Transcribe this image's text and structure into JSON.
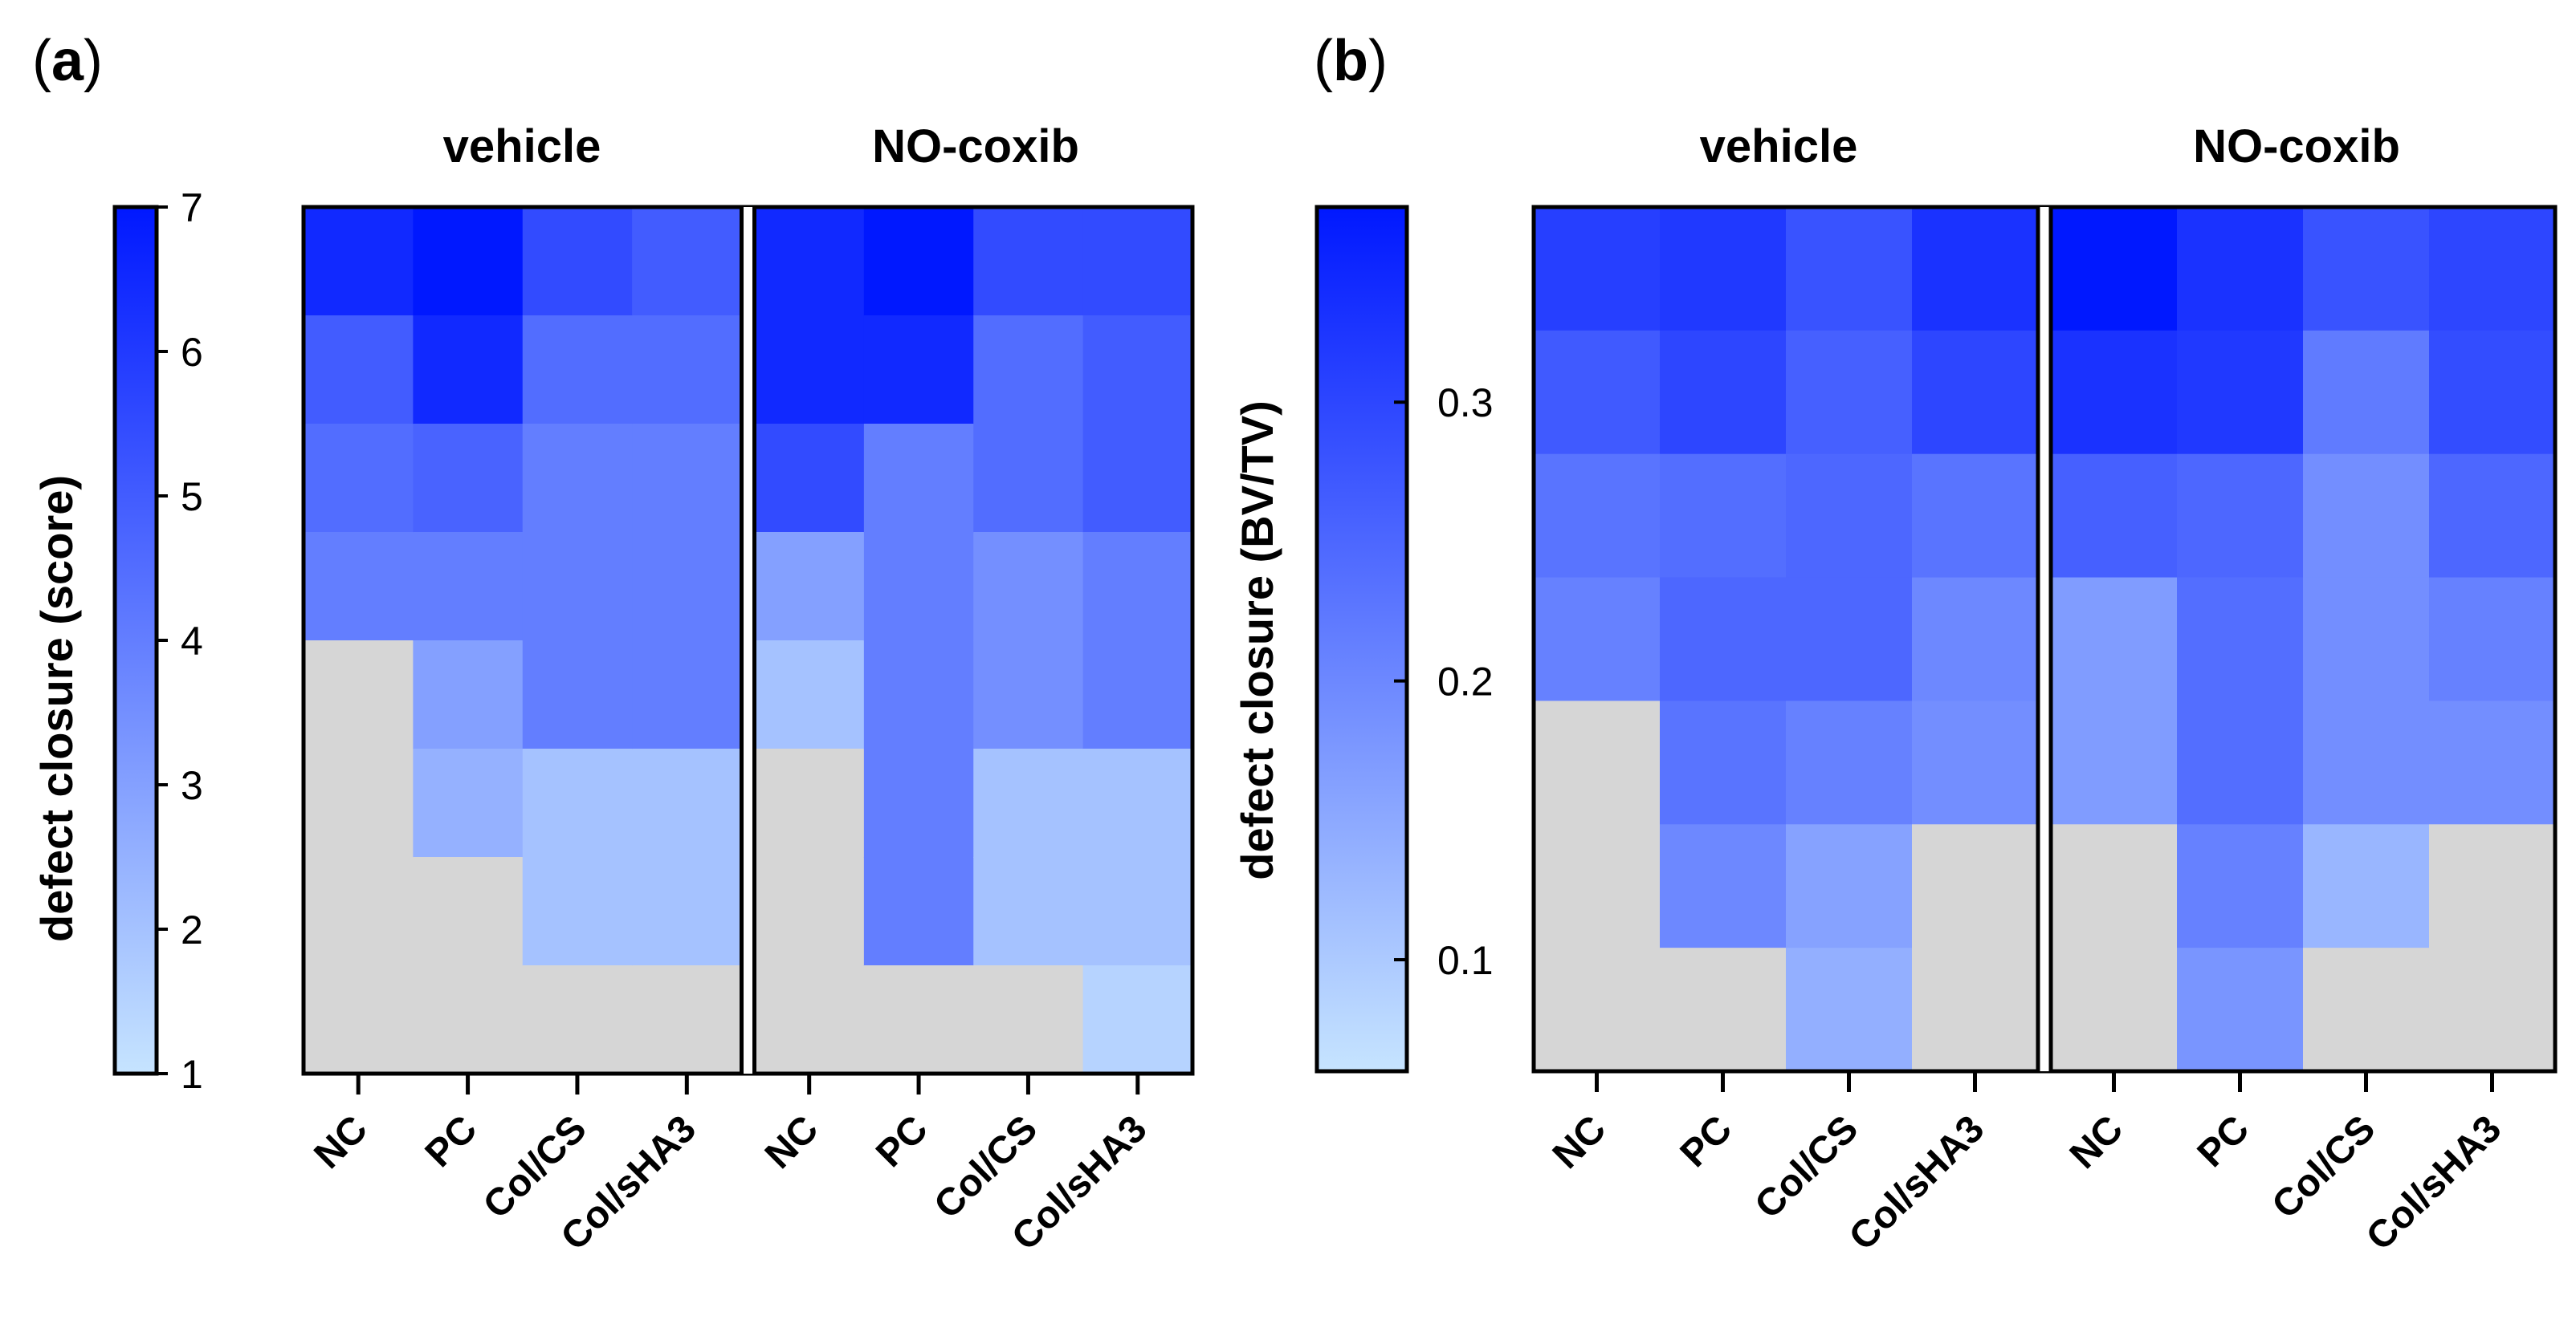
{
  "chart_data": [
    {
      "type": "heatmap",
      "panel": "(a)",
      "panel_letter": "a",
      "groups": [
        "vehicle",
        "NO-coxib"
      ],
      "categories": [
        "NC",
        "PC",
        "Col/CS",
        "Col/sHA3"
      ],
      "colorbar": {
        "label": "defect closure (score)",
        "min": 1,
        "max": 7,
        "ticks": [
          "1",
          "2",
          "3",
          "4",
          "5",
          "6",
          "7"
        ]
      },
      "missing_color": "#d6d6d6",
      "rows": 8,
      "columns": [
        {
          "group": "vehicle",
          "category": "NC",
          "values": [
            6.5,
            5.0,
            4.5,
            4.0,
            null,
            null,
            null,
            null
          ]
        },
        {
          "group": "vehicle",
          "category": "PC",
          "values": [
            7.0,
            6.5,
            4.8,
            4.0,
            3.0,
            2.5,
            null,
            null
          ]
        },
        {
          "group": "vehicle",
          "category": "Col/CS",
          "values": [
            5.5,
            4.5,
            4.0,
            4.0,
            4.0,
            2.0,
            2.0,
            null
          ]
        },
        {
          "group": "vehicle",
          "category": "Col/sHA3",
          "values": [
            5.0,
            4.5,
            4.0,
            4.0,
            4.0,
            2.0,
            2.0,
            null
          ]
        },
        {
          "group": "NO-coxib",
          "category": "NC",
          "values": [
            6.5,
            6.5,
            5.5,
            3.0,
            2.0,
            null,
            null,
            null
          ]
        },
        {
          "group": "NO-coxib",
          "category": "PC",
          "values": [
            7.0,
            6.5,
            4.0,
            4.0,
            4.0,
            4.0,
            4.0,
            null
          ]
        },
        {
          "group": "NO-coxib",
          "category": "Col/CS",
          "values": [
            5.5,
            4.5,
            4.5,
            3.5,
            3.5,
            2.0,
            2.0,
            null
          ]
        },
        {
          "group": "NO-coxib",
          "category": "Col/sHA3",
          "values": [
            5.5,
            5.0,
            5.0,
            4.0,
            4.0,
            2.0,
            2.0,
            1.5
          ]
        }
      ]
    },
    {
      "type": "heatmap",
      "panel": "(b)",
      "panel_letter": "b",
      "groups": [
        "vehicle",
        "NO-coxib"
      ],
      "categories": [
        "NC",
        "PC",
        "Col/CS",
        "Col/sHA3"
      ],
      "colorbar": {
        "label": "defect closure (BV/TV)",
        "min": 0.06,
        "max": 0.37,
        "ticks": [
          "0.1",
          "0.2",
          "0.3"
        ]
      },
      "missing_color": "#d6d6d6",
      "rows": 7,
      "columns": [
        {
          "group": "vehicle",
          "category": "NC",
          "values": [
            0.31,
            0.27,
            0.23,
            0.21,
            null,
            null,
            null
          ]
        },
        {
          "group": "vehicle",
          "category": "PC",
          "values": [
            0.32,
            0.3,
            0.24,
            0.25,
            0.23,
            0.2,
            null
          ]
        },
        {
          "group": "vehicle",
          "category": "Col/CS",
          "values": [
            0.28,
            0.26,
            0.25,
            0.25,
            0.21,
            0.16,
            0.14
          ]
        },
        {
          "group": "vehicle",
          "category": "Col/sHA3",
          "values": [
            0.33,
            0.3,
            0.23,
            0.2,
            0.19,
            null,
            null
          ]
        },
        {
          "group": "NO-coxib",
          "category": "NC",
          "values": [
            0.37,
            0.33,
            0.26,
            0.17,
            0.17,
            null,
            null
          ]
        },
        {
          "group": "NO-coxib",
          "category": "PC",
          "values": [
            0.33,
            0.32,
            0.25,
            0.24,
            0.24,
            0.21,
            0.18
          ]
        },
        {
          "group": "NO-coxib",
          "category": "Col/CS",
          "values": [
            0.28,
            0.22,
            0.19,
            0.19,
            0.19,
            0.13,
            null
          ]
        },
        {
          "group": "NO-coxib",
          "category": "Col/sHA3",
          "values": [
            0.3,
            0.29,
            0.25,
            0.21,
            0.19,
            null,
            null
          ]
        }
      ]
    }
  ]
}
